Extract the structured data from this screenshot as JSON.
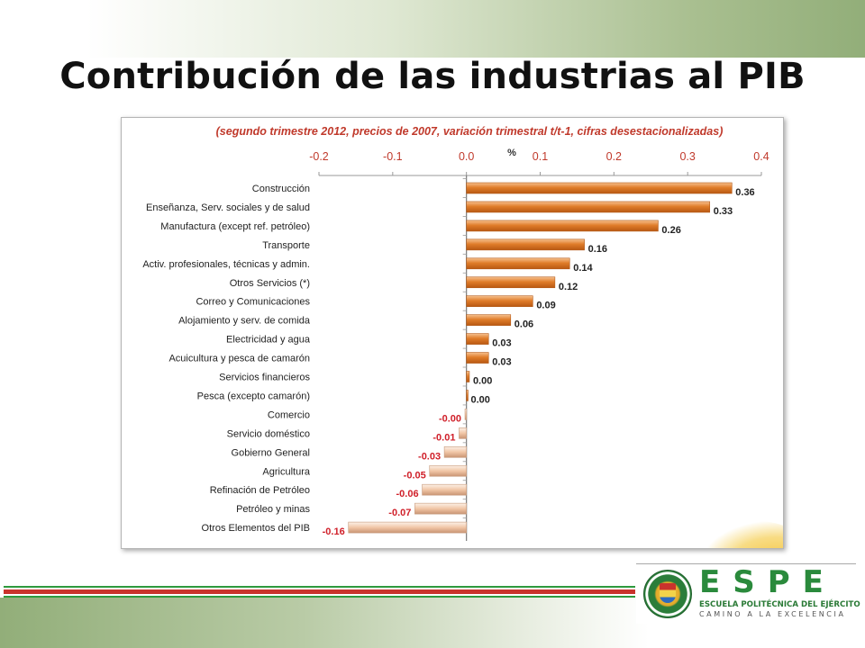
{
  "slide": {
    "title": "Contribución de las industrias al PIB"
  },
  "logo": {
    "acronym": "ESPE",
    "name": "ESCUELA POLITÉCNICA DEL EJÉRCITO",
    "motto": "CAMINO A LA EXCELENCIA",
    "seal_text": "ESCUELA POLITÉCNICA DEL EJÉRCITO ECUADOR",
    "color": "#2a8a3c"
  },
  "chart_data": {
    "type": "bar",
    "orientation": "horizontal",
    "subtitle": "(segundo trimestre 2012, precios de 2007, variación trimestral t/t-1, cifras desestacionalizadas)",
    "axis_unit": "%",
    "xlim": [
      -0.2,
      0.4
    ],
    "x_ticks": [
      -0.2,
      -0.1,
      0.0,
      0.1,
      0.2,
      0.3,
      0.4
    ],
    "x_tick_labels": [
      "-0.2",
      "-0.1",
      "0.0",
      "0.1",
      "0.2",
      "0.3",
      "0.4"
    ],
    "grid": false,
    "categories": [
      "Construcción",
      "Enseñanza, Serv. sociales y de salud",
      "Manufactura (except ref. petróleo)",
      "Transporte",
      "Activ. profesionales, técnicas y admin.",
      "Otros Servicios (*)",
      "Correo y Comunicaciones",
      "Alojamiento y serv. de comida",
      "Electricidad y agua",
      "Acuicultura y pesca de camarón",
      "Servicios financieros",
      "Pesca (excepto camarón)",
      "Comercio",
      "Servicio doméstico",
      "Gobierno General",
      "Agricultura",
      "Refinación de Petróleo",
      "Petróleo y minas",
      "Otros Elementos del PIB"
    ],
    "values": [
      0.36,
      0.33,
      0.26,
      0.16,
      0.14,
      0.12,
      0.09,
      0.06,
      0.03,
      0.03,
      0.004,
      0.001,
      -0.002,
      -0.01,
      -0.03,
      -0.05,
      -0.06,
      -0.07,
      -0.16
    ],
    "value_labels": [
      "0.36",
      "0.33",
      "0.26",
      "0.16",
      "0.14",
      "0.12",
      "0.09",
      "0.06",
      "0.03",
      "0.03",
      "0.00",
      "0.00",
      "-0.00",
      "-0.01",
      "-0.03",
      "-0.05",
      "-0.06",
      "-0.07",
      "-0.16"
    ],
    "colors": {
      "positive": "#d9731f",
      "positive_light": "#f4b37a",
      "negative": "#d9a37c",
      "negative_light": "#fbe8da",
      "positive_label": "#222222",
      "negative_label": "#d0202a",
      "subtitle": "#c0392b"
    }
  }
}
